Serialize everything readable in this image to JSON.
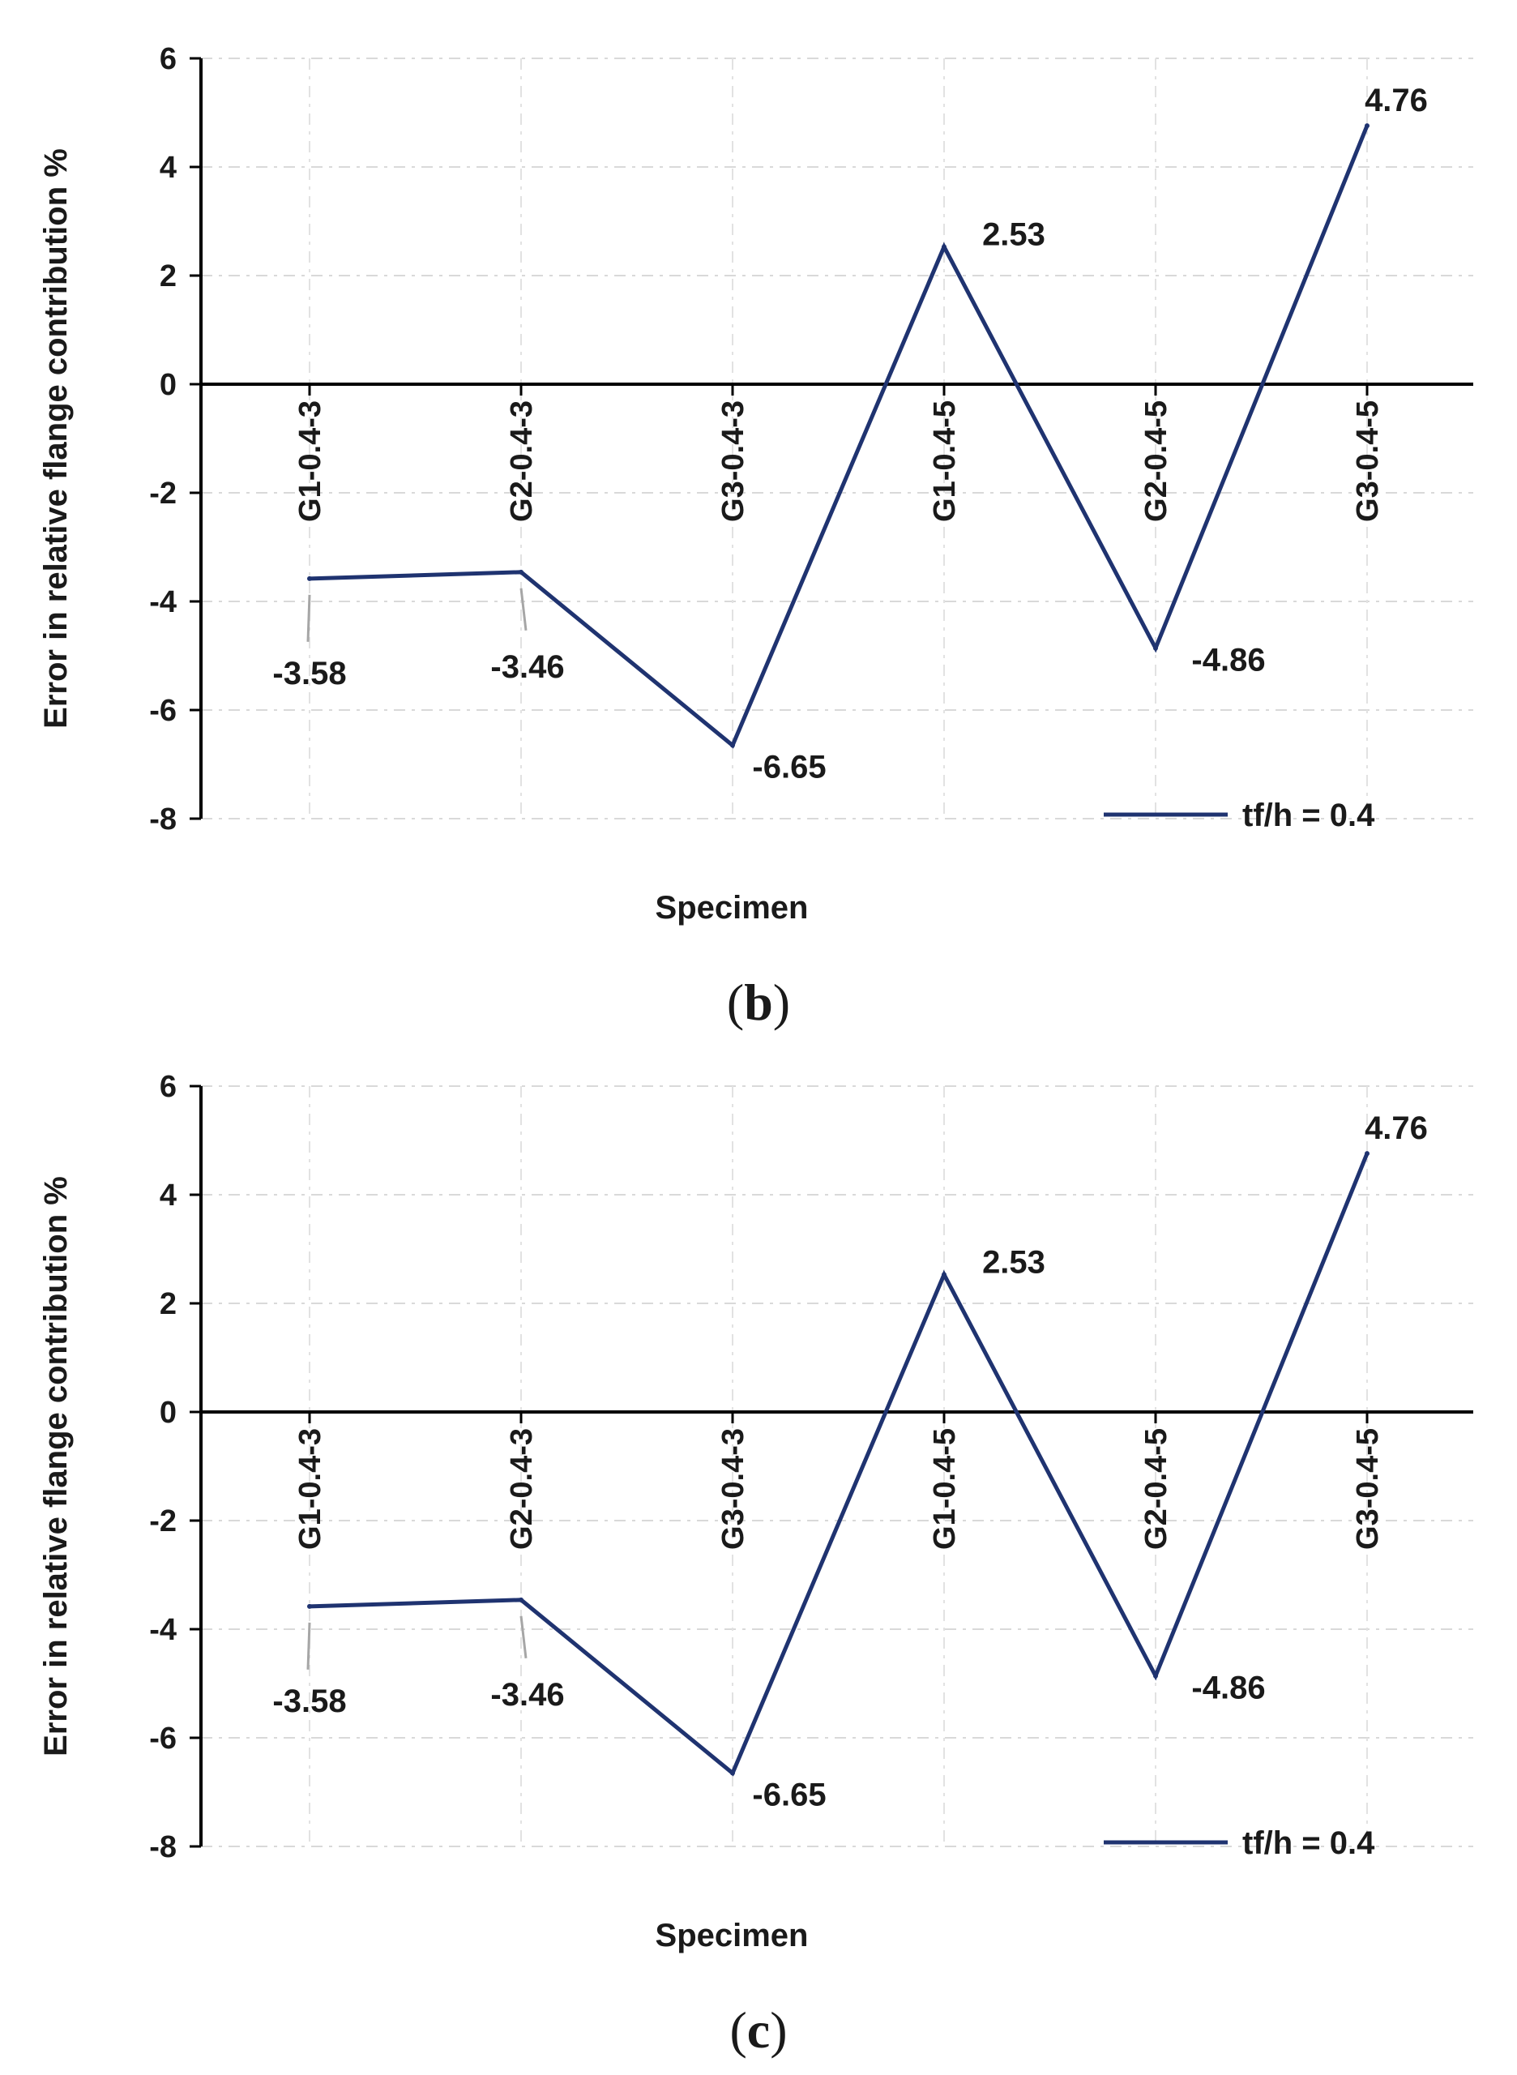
{
  "chart_data": [
    {
      "type": "line",
      "panel": "b",
      "xlabel": "Specimen",
      "ylabel": "Error in relative flange contribution %",
      "ylim": [
        -8,
        6
      ],
      "yticks": [
        6,
        4,
        2,
        0,
        -2,
        -4,
        -6,
        -8
      ],
      "ytick_labels": [
        "6",
        "4",
        "2",
        "0",
        "-2",
        "-4",
        "-6",
        "-8"
      ],
      "grid": "horizontal dashed",
      "legend_position": "bottom-right",
      "categories": [
        "G1-0.4-3",
        "G2-0.4-3",
        "G3-0.4-3",
        "G1-0.4-5",
        "G2-0.4-5",
        "G3-0.4-5"
      ],
      "series": [
        {
          "name": "tf/h = 0.4",
          "color": "#1f3370",
          "values": [
            -3.58,
            -3.46,
            -6.65,
            2.53,
            -4.86,
            4.76
          ],
          "labels": [
            "-3.58",
            "-3.46",
            "-6.65",
            "2.53",
            "-4.86",
            "4.76"
          ]
        }
      ]
    },
    {
      "type": "line",
      "panel": "c",
      "xlabel": "Specimen",
      "ylabel": "Error in relative flange contribution %",
      "ylim": [
        -8,
        6
      ],
      "yticks": [
        6,
        4,
        2,
        0,
        -2,
        -4,
        -6,
        -8
      ],
      "ytick_labels": [
        "6",
        "4",
        "2",
        "0",
        "-2",
        "-4",
        "-6",
        "-8"
      ],
      "grid": "horizontal dashed",
      "legend_position": "bottom-right",
      "categories": [
        "G1-0.4-3",
        "G2-0.4-3",
        "G3-0.4-3",
        "G1-0.4-5",
        "G2-0.4-5",
        "G3-0.4-5"
      ],
      "series": [
        {
          "name": "tf/h = 0.4",
          "color": "#1f3370",
          "values": [
            -3.58,
            -3.46,
            -6.65,
            2.53,
            -4.86,
            4.76
          ],
          "labels": [
            "-3.58",
            "-3.46",
            "-6.65",
            "2.53",
            "-4.86",
            "4.76"
          ]
        }
      ]
    }
  ],
  "captions": [
    {
      "open": "(",
      "letter": "b",
      "close": ")"
    },
    {
      "open": "(",
      "letter": "c",
      "close": ")"
    }
  ]
}
